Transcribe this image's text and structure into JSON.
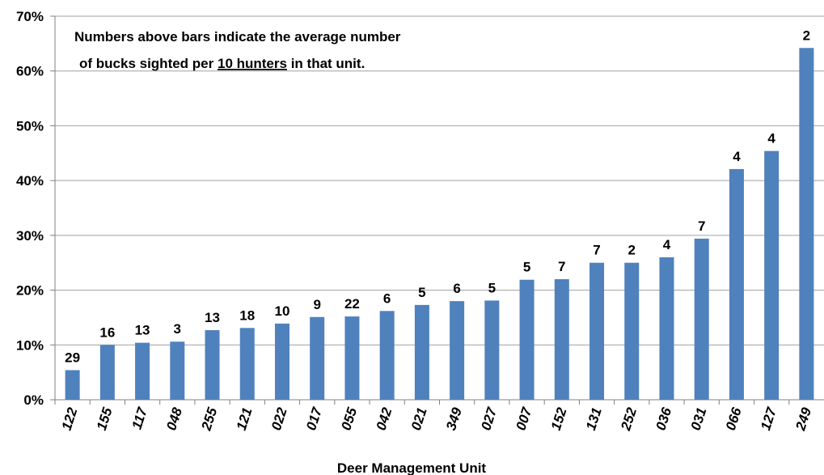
{
  "chart_data": {
    "type": "bar",
    "x_label": "Deer Management Unit",
    "annotation": [
      "Numbers above bars indicate the average number",
      "of bucks sighted per",
      "10 hunters",
      "in that unit."
    ],
    "categories": [
      "122",
      "155",
      "117",
      "048",
      "255",
      "121",
      "022",
      "017",
      "055",
      "042",
      "021",
      "349",
      "027",
      "007",
      "152",
      "131",
      "252",
      "036",
      "031",
      "066",
      "127",
      "249"
    ],
    "values": [
      5.4,
      10,
      10.4,
      10.6,
      12.7,
      13.1,
      13.9,
      15.1,
      15.2,
      16.2,
      17.3,
      18,
      18.1,
      21.9,
      22,
      25,
      25,
      26,
      29.4,
      42.1,
      45.4,
      64.2
    ],
    "bar_labels": [
      29,
      16,
      13,
      3,
      13,
      18,
      10,
      9,
      22,
      6,
      5,
      6,
      5,
      5,
      7,
      7,
      2,
      4,
      7,
      4,
      4,
      2
    ],
    "color": "#4f81bd",
    "ylim": [
      0,
      70
    ],
    "yticks": [
      {
        "value": 0,
        "label": "0%"
      },
      {
        "value": 10,
        "label": "10%"
      },
      {
        "value": 20,
        "label": "20%"
      },
      {
        "value": 30,
        "label": "30%"
      },
      {
        "value": 40,
        "label": "40%"
      },
      {
        "value": 50,
        "label": "50%"
      },
      {
        "value": 60,
        "label": "60%"
      },
      {
        "value": 70,
        "label": "70%"
      }
    ],
    "grid": true
  }
}
